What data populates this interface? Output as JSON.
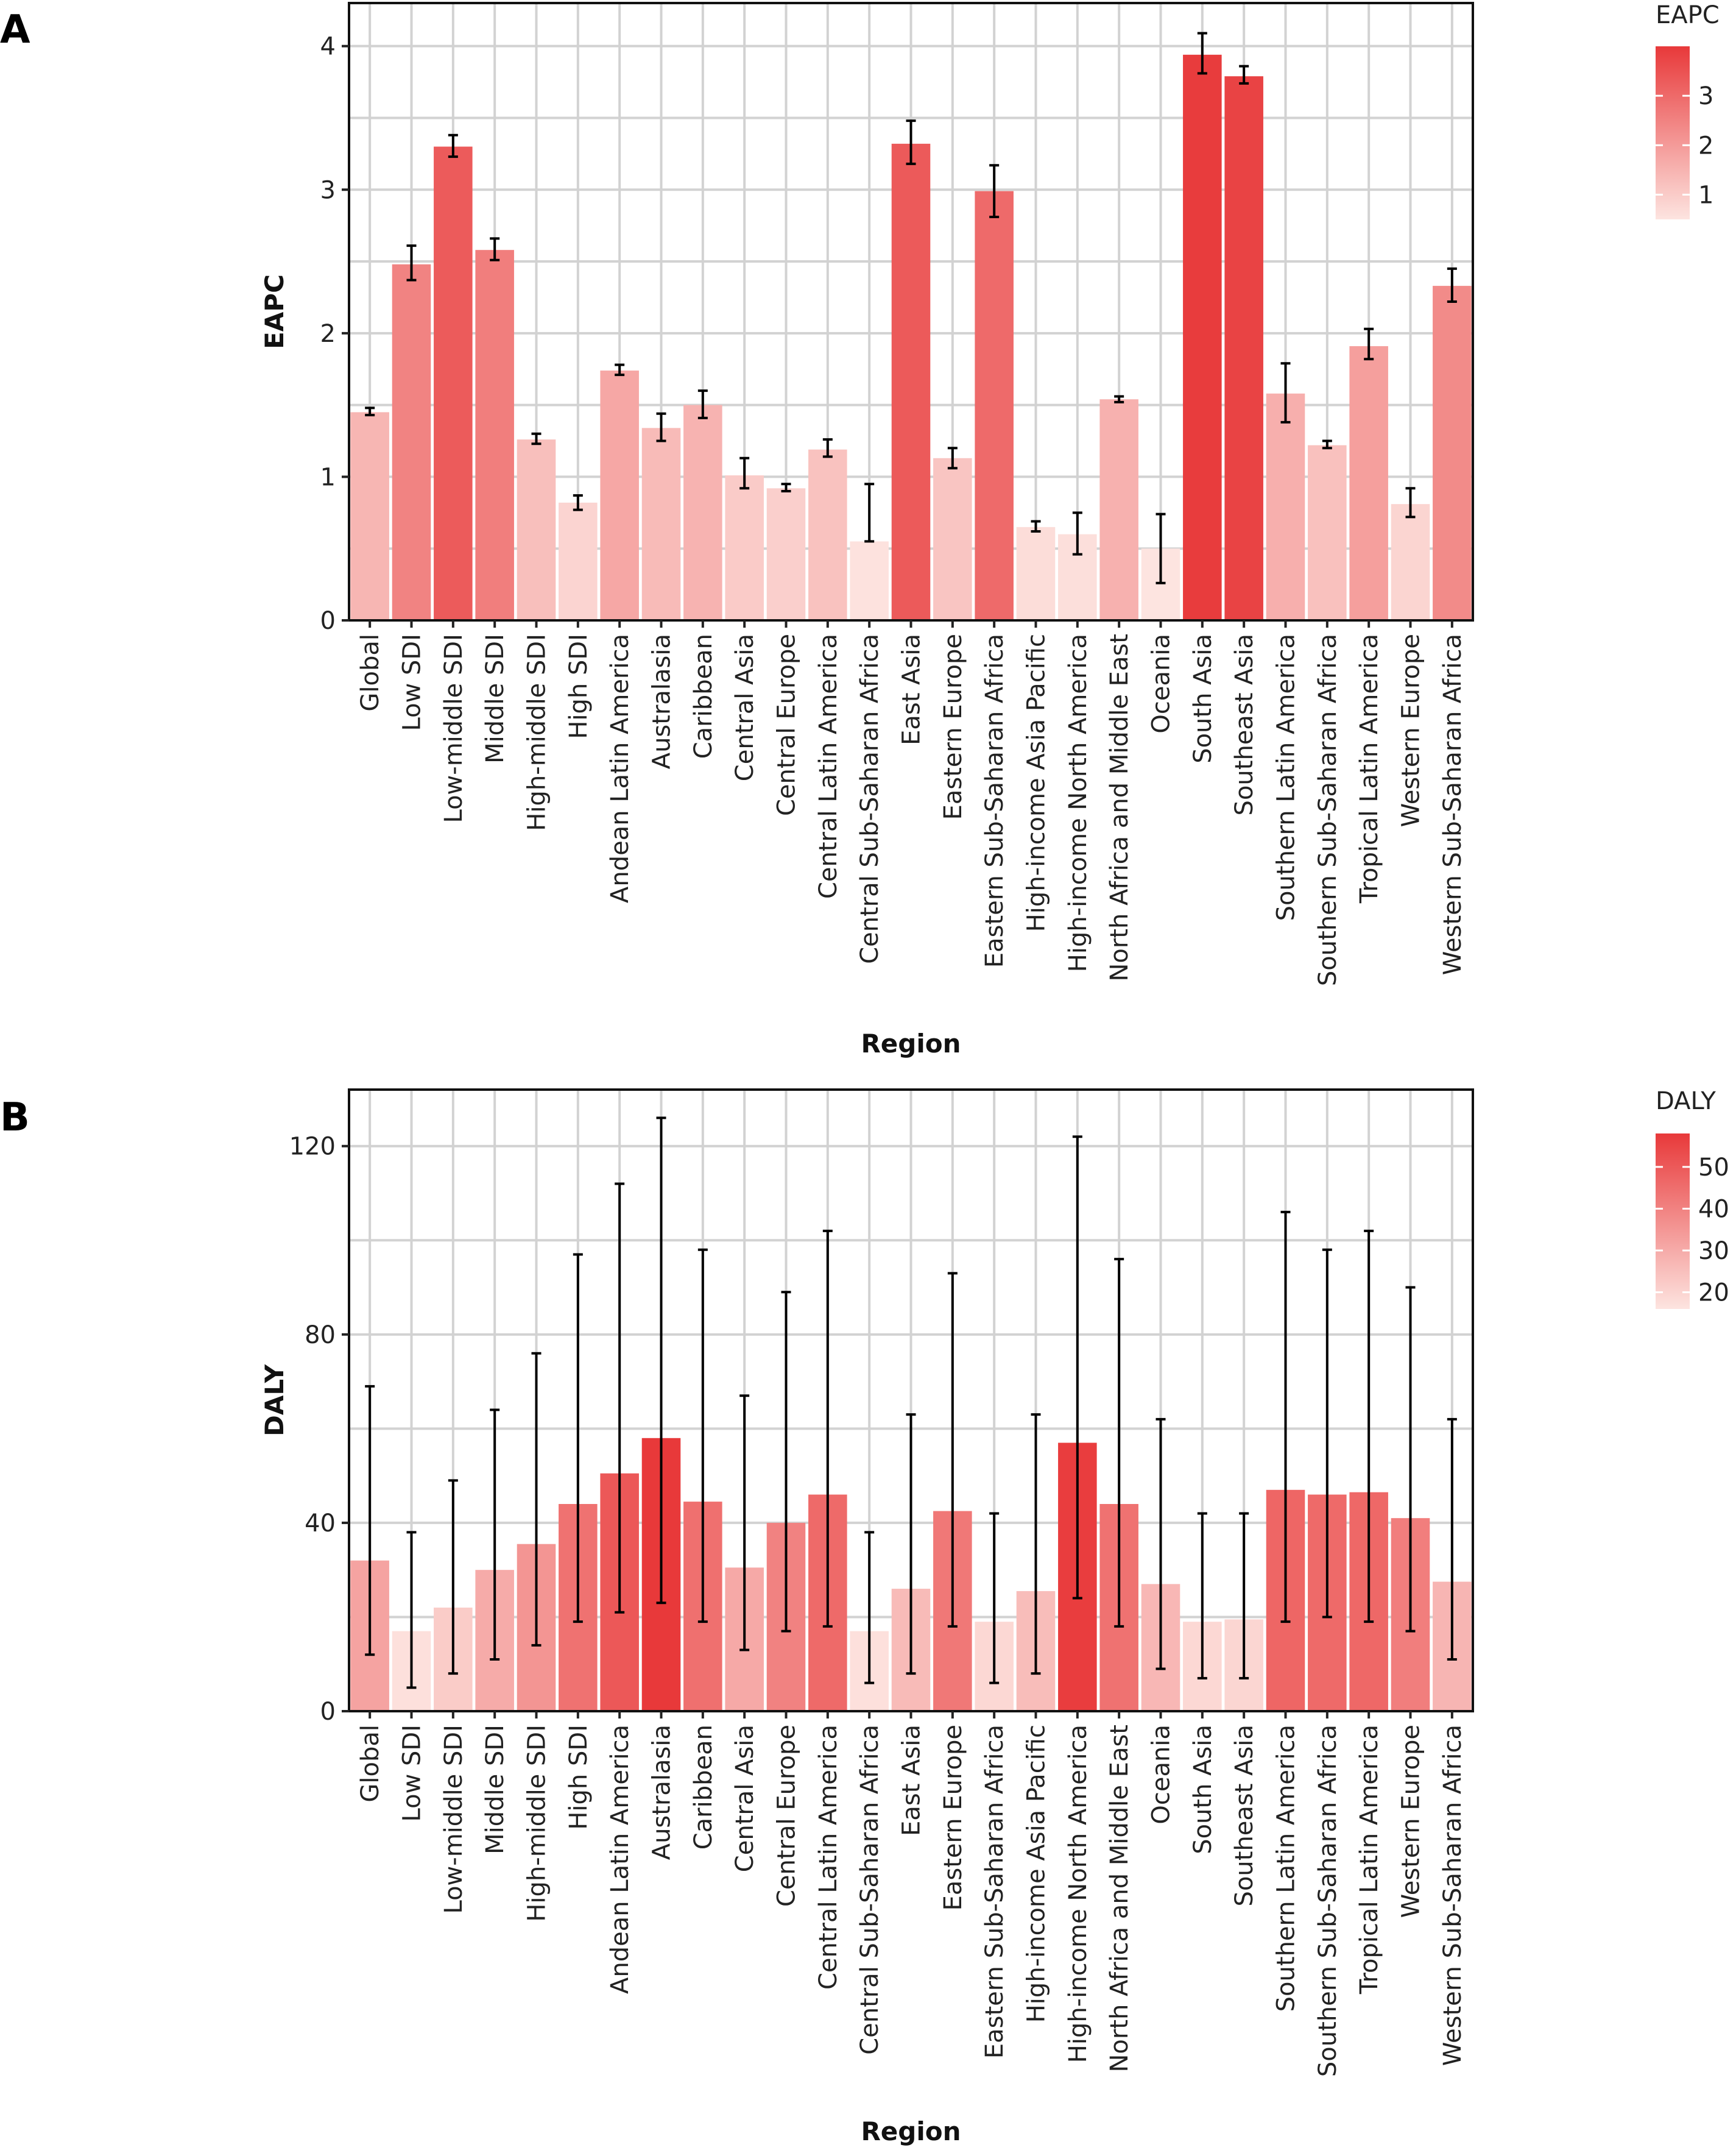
{
  "panels": [
    "A",
    "B"
  ],
  "chart_data": [
    {
      "type": "bar",
      "panel": "A",
      "xlabel": "Region",
      "ylabel": "EAPC",
      "ylim": [
        0,
        4.3
      ],
      "yticks": [
        0,
        1,
        2,
        3,
        4
      ],
      "grid": true,
      "legend": {
        "title": "EAPC",
        "position": "top-right",
        "ticks": [
          1,
          2,
          3
        ],
        "range": [
          0.5,
          4.0
        ]
      },
      "color_low": "#fde4e0",
      "color_high": "#e8393a",
      "categories": [
        "Global",
        "Low SDI",
        "Low-middle SDI",
        "Middle SDI",
        "High-middle SDI",
        "High SDI",
        "Andean Latin America",
        "Australasia",
        "Caribbean",
        "Central Asia",
        "Central Europe",
        "Central Latin America",
        "Central Sub-Saharan Africa",
        "East Asia",
        "Eastern Europe",
        "Eastern Sub-Saharan Africa",
        "High-income Asia Pacific",
        "High-income North America",
        "North Africa and Middle East",
        "Oceania",
        "South Asia",
        "Southeast Asia",
        "Southern Latin America",
        "Southern Sub-Saharan Africa",
        "Tropical Latin America",
        "Western Europe",
        "Western Sub-Saharan Africa"
      ],
      "values": [
        1.45,
        2.48,
        3.3,
        2.58,
        1.26,
        0.82,
        1.74,
        1.34,
        1.5,
        1.01,
        0.92,
        1.19,
        0.55,
        3.32,
        1.13,
        2.99,
        0.65,
        0.6,
        1.54,
        0.5,
        3.94,
        3.79,
        1.58,
        1.22,
        1.91,
        0.81,
        2.33
      ],
      "lower": [
        1.43,
        2.37,
        3.23,
        2.51,
        1.23,
        0.77,
        1.71,
        1.25,
        1.41,
        0.92,
        0.9,
        1.14,
        0.55,
        3.18,
        1.06,
        2.81,
        0.62,
        0.46,
        1.52,
        0.26,
        3.81,
        3.74,
        1.38,
        1.2,
        1.82,
        0.72,
        2.22
      ],
      "upper": [
        1.48,
        2.61,
        3.38,
        2.66,
        1.3,
        0.87,
        1.78,
        1.44,
        1.6,
        1.13,
        0.95,
        1.26,
        0.95,
        3.48,
        1.2,
        3.17,
        0.69,
        0.75,
        1.56,
        0.74,
        4.09,
        3.86,
        1.79,
        1.25,
        2.03,
        0.92,
        2.45
      ]
    },
    {
      "type": "bar",
      "panel": "B",
      "xlabel": "Region",
      "ylabel": "DALY",
      "ylim": [
        0,
        132
      ],
      "yticks": [
        0,
        40,
        80,
        120
      ],
      "grid": true,
      "legend": {
        "title": "DALY",
        "position": "top-right",
        "ticks": [
          20,
          30,
          40,
          50
        ],
        "range": [
          16,
          58
        ]
      },
      "color_low": "#fde4e0",
      "color_high": "#e8393a",
      "categories": [
        "Global",
        "Low SDI",
        "Low-middle SDI",
        "Middle SDI",
        "High-middle SDI",
        "High SDI",
        "Andean Latin America",
        "Australasia",
        "Caribbean",
        "Central Asia",
        "Central Europe",
        "Central Latin America",
        "Central Sub-Saharan Africa",
        "East Asia",
        "Eastern Europe",
        "Eastern Sub-Saharan Africa",
        "High-income Asia Pacific",
        "High-income North America",
        "North Africa and Middle East",
        "Oceania",
        "South Asia",
        "Southeast Asia",
        "Southern Latin America",
        "Southern Sub-Saharan Africa",
        "Tropical Latin America",
        "Western Europe",
        "Western Sub-Saharan Africa"
      ],
      "values": [
        32,
        17,
        22,
        30,
        35.5,
        44,
        50.5,
        58,
        44.5,
        30.5,
        40,
        46,
        17,
        26,
        42.5,
        19,
        25.5,
        57,
        44,
        27,
        19,
        19.5,
        47,
        46,
        46.5,
        41,
        27.5
      ],
      "lower": [
        12,
        5,
        8,
        11,
        14,
        19,
        21,
        23,
        19,
        13,
        17,
        18,
        6,
        8,
        18,
        6,
        8,
        24,
        18,
        9,
        7,
        7,
        19,
        20,
        19,
        17,
        11
      ],
      "upper": [
        69,
        38,
        49,
        64,
        76,
        97,
        112,
        126,
        98,
        67,
        89,
        102,
        38,
        63,
        93,
        42,
        63,
        122,
        96,
        62,
        42,
        42,
        106,
        98,
        102,
        90,
        62
      ]
    }
  ]
}
